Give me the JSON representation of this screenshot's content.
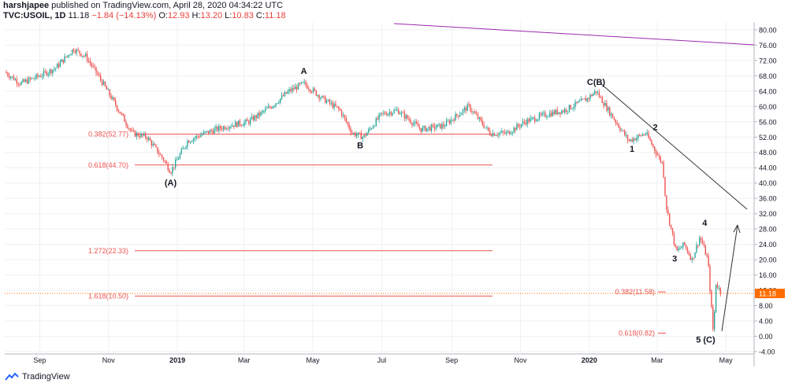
{
  "header": {
    "publisher": "harshjapee",
    "published_text": "published on TradingView.com, April 28, 2020 04:34:22 UTC",
    "symbol": "TVC:USOIL, 1D",
    "last": "11.18",
    "change": "−1.84 (−14.13%)",
    "o_label": "O:",
    "o_value": "12.93",
    "h_label": "H:",
    "h_value": "13.20",
    "l_label": "L:",
    "l_value": "10.83",
    "c_label": "C:",
    "c_value": "11.18"
  },
  "footer": {
    "brand": "TradingView"
  },
  "colors": {
    "up": "#26a69a",
    "down": "#ef5350",
    "fib": "#ef5350",
    "trend": "#333333",
    "purple": "#9c27b0",
    "price_tag": "#ff6d00"
  },
  "chart_data": {
    "type": "candlestick",
    "x_tick_labels": [
      "Sep",
      "Nov",
      "2019",
      "Mar",
      "May",
      "Jul",
      "Sep",
      "Nov",
      "2020",
      "Mar",
      "May"
    ],
    "y_tick_labels": [
      "80.00",
      "76.00",
      "72.00",
      "68.00",
      "64.00",
      "60.00",
      "56.00",
      "52.00",
      "48.00",
      "44.00",
      "40.00",
      "36.00",
      "32.00",
      "28.00",
      "24.00",
      "20.00",
      "16.00",
      "12.00",
      "8.00",
      "4.00",
      "0.00",
      "-4.00"
    ],
    "ylim": [
      -4,
      80
    ],
    "last_price_label": "11.18",
    "price_path": [
      [
        "2018-08-01",
        69
      ],
      [
        "2018-08-15",
        66
      ],
      [
        "2018-09-01",
        68
      ],
      [
        "2018-09-15",
        70
      ],
      [
        "2018-10-01",
        75
      ],
      [
        "2018-10-12",
        73
      ],
      [
        "2018-10-25",
        67
      ],
      [
        "2018-11-08",
        60
      ],
      [
        "2018-11-22",
        53
      ],
      [
        "2018-12-05",
        52
      ],
      [
        "2018-12-20",
        46
      ],
      [
        "2018-12-26",
        43
      ],
      [
        "2019-01-10",
        51
      ],
      [
        "2019-01-25",
        53
      ],
      [
        "2019-02-15",
        55
      ],
      [
        "2019-03-05",
        56
      ],
      [
        "2019-03-25",
        60
      ],
      [
        "2019-04-10",
        64
      ],
      [
        "2019-04-23",
        66
      ],
      [
        "2019-05-10",
        62
      ],
      [
        "2019-05-25",
        59
      ],
      [
        "2019-06-05",
        53
      ],
      [
        "2019-06-15",
        52
      ],
      [
        "2019-07-01",
        58
      ],
      [
        "2019-07-15",
        59
      ],
      [
        "2019-08-05",
        54
      ],
      [
        "2019-08-25",
        55
      ],
      [
        "2019-09-16",
        60
      ],
      [
        "2019-10-05",
        53
      ],
      [
        "2019-10-20",
        53
      ],
      [
        "2019-11-05",
        56
      ],
      [
        "2019-11-25",
        58
      ],
      [
        "2019-12-10",
        59
      ],
      [
        "2019-12-30",
        62
      ],
      [
        "2020-01-07",
        64
      ],
      [
        "2020-01-20",
        58
      ],
      [
        "2020-02-05",
        51
      ],
      [
        "2020-02-20",
        53
      ],
      [
        "2020-03-02",
        47
      ],
      [
        "2020-03-06",
        45
      ],
      [
        "2020-03-09",
        34
      ],
      [
        "2020-03-18",
        22
      ],
      [
        "2020-03-25",
        24
      ],
      [
        "2020-04-01",
        20
      ],
      [
        "2020-04-08",
        26
      ],
      [
        "2020-04-15",
        20
      ],
      [
        "2020-04-20",
        0
      ],
      [
        "2020-04-22",
        14
      ],
      [
        "2020-04-27",
        11.18
      ]
    ],
    "fib_levels": [
      {
        "label": "0.382(52.77)",
        "value": 52.77
      },
      {
        "label": "0.618(44.70)",
        "value": 44.7
      },
      {
        "label": "1.272(22.33)",
        "value": 22.33
      },
      {
        "label": "1.618(10.50)",
        "value": 10.5
      },
      {
        "label": "0.382(11.58)",
        "value": 11.58
      },
      {
        "label": "0.618(0.82)",
        "value": 0.82
      }
    ],
    "wave_labels": [
      {
        "text": "(A)",
        "date": "2018-12-26",
        "price": 43
      },
      {
        "text": "A",
        "date": "2019-04-23",
        "price": 66
      },
      {
        "text": "B",
        "date": "2019-06-12",
        "price": 52
      },
      {
        "text": "C(B)",
        "date": "2020-01-07",
        "price": 64
      },
      {
        "text": "1",
        "date": "2020-02-05",
        "price": 51
      },
      {
        "text": "2",
        "date": "2020-02-20",
        "price": 53
      },
      {
        "text": "3",
        "date": "2020-03-18",
        "price": 22
      },
      {
        "text": "4",
        "date": "2020-04-08",
        "price": 26
      },
      {
        "text": "5 (C)",
        "date": "2020-04-20",
        "price": 0
      }
    ]
  }
}
